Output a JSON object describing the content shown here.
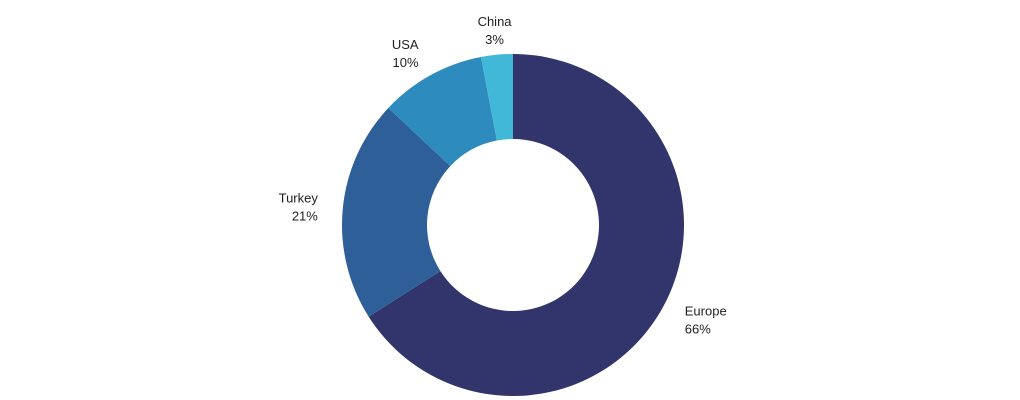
{
  "chart_data": {
    "type": "pie",
    "variant": "donut",
    "categories": [
      "Europe",
      "Turkey",
      "USA",
      "China"
    ],
    "values": [
      66,
      21,
      10,
      3
    ],
    "value_labels": [
      "66%",
      "21%",
      "10%",
      "3%"
    ],
    "colors": [
      "#31356b",
      "#2e5f99",
      "#2e8bbd",
      "#41b8d8"
    ],
    "title": "",
    "legend": "none"
  }
}
